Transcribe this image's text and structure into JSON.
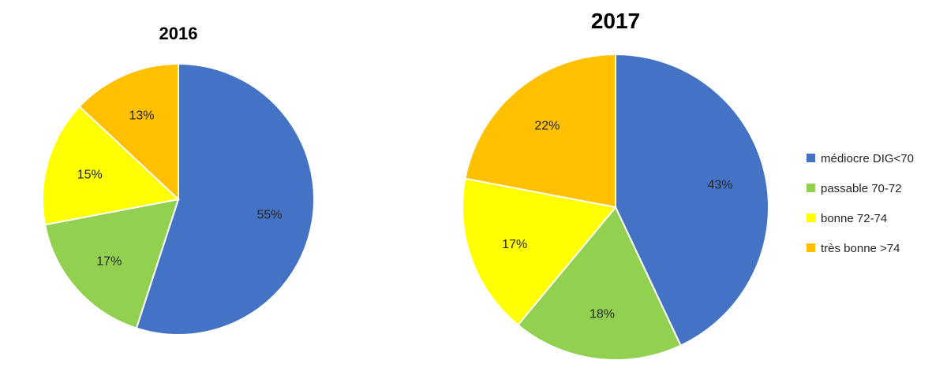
{
  "chart_data": [
    {
      "type": "pie",
      "title": "2016",
      "categories": [
        "médiocre DIG<70",
        "passable 70-72",
        "bonne 72-74",
        "très bonne >74"
      ],
      "values": [
        55,
        17,
        15,
        13
      ],
      "labels": [
        "55%",
        "17%",
        "15%",
        "13%"
      ],
      "colors": [
        "#4472C4",
        "#92D050",
        "#FFFF00",
        "#FFC000"
      ]
    },
    {
      "type": "pie",
      "title": "2017",
      "categories": [
        "médiocre DIG<70",
        "passable 70-72",
        "bonne 72-74",
        "très bonne >74"
      ],
      "values": [
        43,
        18,
        17,
        22
      ],
      "labels": [
        "43%",
        "18%",
        "17%",
        "22%"
      ],
      "colors": [
        "#4472C4",
        "#92D050",
        "#FFFF00",
        "#FFC000"
      ]
    }
  ],
  "legend": {
    "placement": "right",
    "items": [
      {
        "label": "médiocre DIG<70",
        "color": "#4472C4"
      },
      {
        "label": "passable 70-72",
        "color": "#92D050"
      },
      {
        "label": "bonne 72-74",
        "color": "#FFFF00"
      },
      {
        "label": "très bonne >74",
        "color": "#FFC000"
      }
    ]
  }
}
